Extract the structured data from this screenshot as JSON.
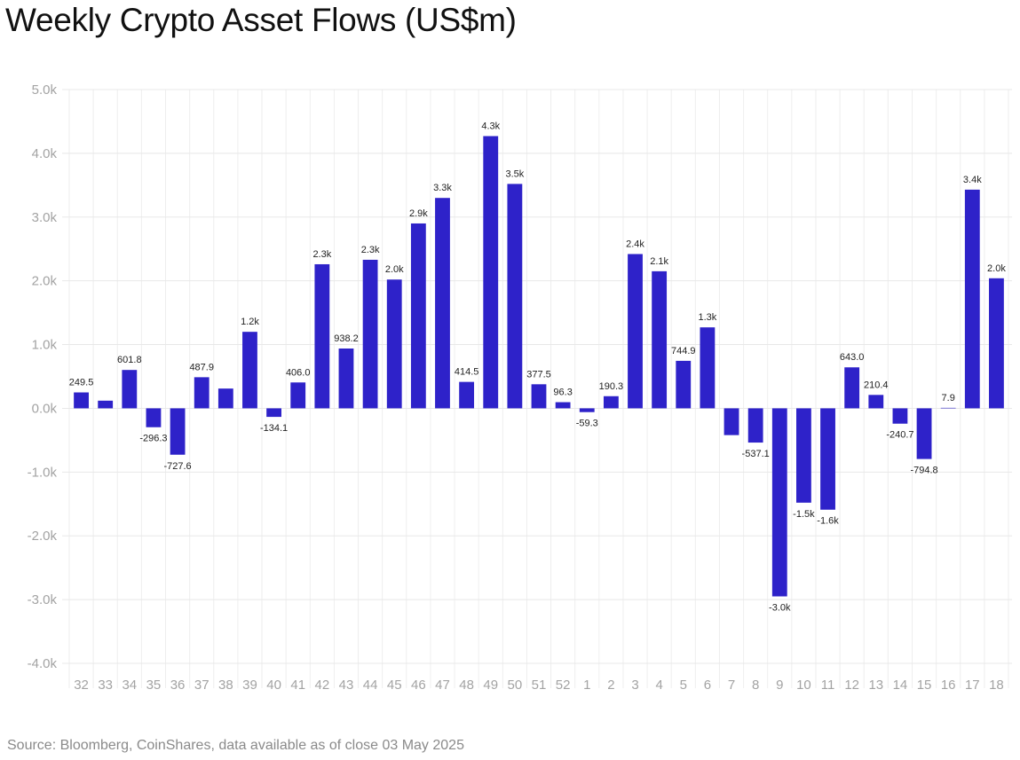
{
  "chart_data": {
    "type": "bar",
    "title": "Weekly Crypto Asset Flows (US$m)",
    "xlabel": "",
    "ylabel": "",
    "ylim": [
      -4000,
      5000
    ],
    "yticks": [
      5000,
      4000,
      3000,
      2000,
      1000,
      0,
      -1000,
      -2000,
      -3000,
      -4000
    ],
    "ytick_labels": [
      "5.0k",
      "4.0k",
      "3.0k",
      "2.0k",
      "1.0k",
      "0.0k",
      "-1.0k",
      "-2.0k",
      "-3.0k",
      "-4.0k"
    ],
    "grid": true,
    "bar_color": "#2e22c9",
    "categories": [
      "32",
      "33",
      "34",
      "35",
      "36",
      "37",
      "38",
      "39",
      "40",
      "41",
      "42",
      "43",
      "44",
      "45",
      "46",
      "47",
      "48",
      "49",
      "50",
      "51",
      "52",
      "1",
      "2",
      "3",
      "4",
      "5",
      "6",
      "7",
      "8",
      "9",
      "10",
      "11",
      "12",
      "13",
      "14",
      "15",
      "16",
      "17",
      "18"
    ],
    "values": [
      249.5,
      120,
      601.8,
      -296.3,
      -727.6,
      487.9,
      310,
      1200,
      -134.1,
      406.0,
      2260,
      938.2,
      2330,
      2020,
      2900,
      3300,
      414.5,
      4270,
      3520,
      377.5,
      96.3,
      -59.3,
      190.3,
      2420,
      2150,
      744.9,
      1270,
      -420,
      -537.1,
      -2950,
      -1480,
      -1590,
      643.0,
      210.4,
      -240.7,
      -794.8,
      7.9,
      3430,
      2040
    ],
    "data_labels": [
      "249.5",
      "",
      "601.8",
      "-296.3",
      "-727.6",
      "487.9",
      "",
      "1.2k",
      "-134.1",
      "406.0",
      "2.3k",
      "938.2",
      "2.3k",
      "2.0k",
      "2.9k",
      "3.3k",
      "414.5",
      "4.3k",
      "3.5k",
      "377.5",
      "96.3",
      "-59.3",
      "190.3",
      "2.4k",
      "2.1k",
      "744.9",
      "1.3k",
      "",
      "-537.1",
      "-3.0k",
      "-1.5k",
      "-1.6k",
      "643.0",
      "210.4",
      "-240.7",
      "-794.8",
      "7.9",
      "3.4k",
      "2.0k"
    ]
  },
  "source_note": "Source: Bloomberg, CoinShares, data available as of close 03 May 2025"
}
